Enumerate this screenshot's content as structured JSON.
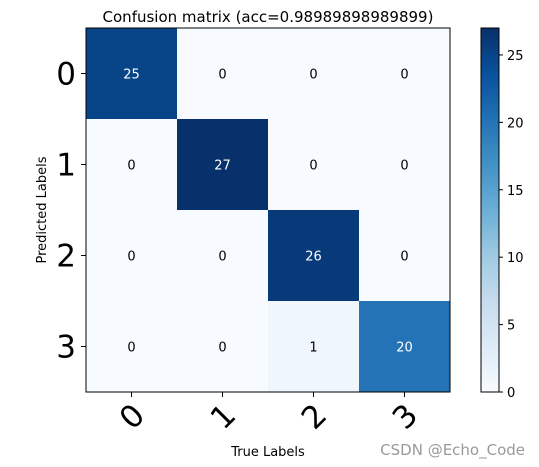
{
  "chart_data": {
    "type": "heatmap",
    "title": "Confusion matrix (acc=0.98989898989899)",
    "xlabel": "True Labels",
    "ylabel": "Predicted Labels",
    "x_categories": [
      "0",
      "1",
      "2",
      "3"
    ],
    "y_categories": [
      "0",
      "1",
      "2",
      "3"
    ],
    "matrix": [
      [
        25,
        0,
        0,
        0
      ],
      [
        0,
        27,
        0,
        0
      ],
      [
        0,
        0,
        26,
        0
      ],
      [
        0,
        0,
        1,
        20
      ]
    ],
    "colormap": "Blues",
    "colorbar": {
      "range": [
        0,
        27
      ],
      "ticks": [
        0,
        5,
        10,
        15,
        20,
        25
      ]
    },
    "grid": false
  },
  "watermark": "CSDN @Echo_Code"
}
